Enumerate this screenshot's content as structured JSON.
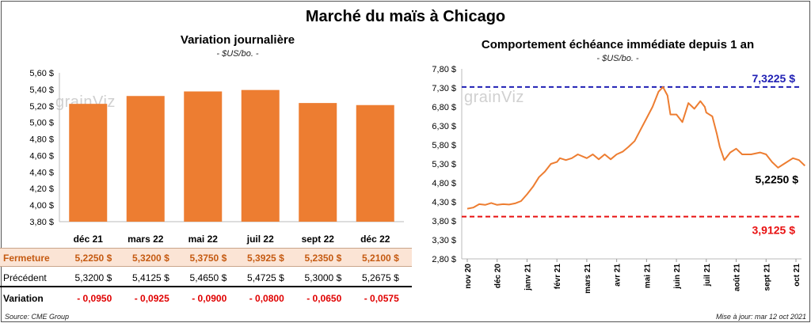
{
  "title": "Marché du maïs à Chicago",
  "left": {
    "title": "Variation journalière",
    "subtitle": "- $US/bo. -",
    "watermark": "grainViz"
  },
  "right": {
    "title": "Comportement échéance immédiate depuis 1 an",
    "subtitle": "- $US/bo. -",
    "watermark": "grainViz"
  },
  "table": {
    "rows": [
      {
        "label": "Fermeture",
        "values": [
          "5,2250 $",
          "5,3200 $",
          "5,3750 $",
          "5,3925 $",
          "5,2350 $",
          "5,2100 $"
        ]
      },
      {
        "label": "Précédent",
        "values": [
          "5,3200 $",
          "5,4125 $",
          "5,4650 $",
          "5,4725 $",
          "5,3000 $",
          "5,2675 $"
        ]
      },
      {
        "label": "Variation",
        "values": [
          "- 0,0950",
          "- 0,0925",
          "- 0,0900",
          "- 0,0800",
          "- 0,0650",
          "- 0,0575"
        ]
      }
    ]
  },
  "footer": {
    "source": "Source: CME Group",
    "updated": "Mise à jour: mar 12 oct 2021"
  },
  "colors": {
    "bar": "#ED7D31",
    "line": "#ED7D31",
    "max_line": "#1F1FB4",
    "min_line": "#E81010",
    "fermeture_bg": "#FBE4D5",
    "negative": "#E00000"
  },
  "chart_data": [
    {
      "type": "bar",
      "categories": [
        "déc 21",
        "mars 22",
        "mai 22",
        "juil 22",
        "sept 22",
        "déc 22"
      ],
      "values": [
        5.225,
        5.32,
        5.375,
        5.3925,
        5.235,
        5.21
      ],
      "ylim": [
        3.8,
        5.6
      ],
      "yticks": [
        "3,80 $",
        "4,00 $",
        "4,20 $",
        "4,40 $",
        "4,60 $",
        "4,80 $",
        "5,00 $",
        "5,20 $",
        "5,40 $",
        "5,60 $"
      ],
      "grid": false,
      "legend": "none"
    },
    {
      "type": "line",
      "x_labels": [
        "nov 20",
        "déc 20",
        "janv 21",
        "févr 21",
        "mars 21",
        "avr 21",
        "mai 21",
        "juin 21",
        "juil 21",
        "août 21",
        "sept 21",
        "oct 21"
      ],
      "ylim": [
        2.8,
        7.8
      ],
      "yticks": [
        "2,80 $",
        "3,30 $",
        "3,80 $",
        "4,30 $",
        "4,80 $",
        "5,30 $",
        "5,80 $",
        "6,30 $",
        "6,80 $",
        "7,30 $",
        "7,80 $"
      ],
      "series": [
        {
          "values": [
            [
              0.0,
              4.12
            ],
            [
              0.2,
              4.15
            ],
            [
              0.4,
              4.24
            ],
            [
              0.6,
              4.22
            ],
            [
              0.8,
              4.27
            ],
            [
              1.0,
              4.22
            ],
            [
              1.2,
              4.24
            ],
            [
              1.4,
              4.23
            ],
            [
              1.6,
              4.26
            ],
            [
              1.8,
              4.32
            ],
            [
              2.0,
              4.5
            ],
            [
              2.2,
              4.7
            ],
            [
              2.4,
              4.95
            ],
            [
              2.6,
              5.1
            ],
            [
              2.8,
              5.3
            ],
            [
              3.0,
              5.35
            ],
            [
              3.1,
              5.45
            ],
            [
              3.3,
              5.4
            ],
            [
              3.5,
              5.45
            ],
            [
              3.7,
              5.55
            ],
            [
              4.0,
              5.45
            ],
            [
              4.2,
              5.55
            ],
            [
              4.4,
              5.42
            ],
            [
              4.6,
              5.55
            ],
            [
              4.8,
              5.42
            ],
            [
              5.0,
              5.55
            ],
            [
              5.2,
              5.62
            ],
            [
              5.4,
              5.75
            ],
            [
              5.6,
              5.9
            ],
            [
              5.8,
              6.2
            ],
            [
              6.0,
              6.5
            ],
            [
              6.2,
              6.8
            ],
            [
              6.4,
              7.2
            ],
            [
              6.55,
              7.3225
            ],
            [
              6.7,
              7.1
            ],
            [
              6.8,
              6.6
            ],
            [
              7.0,
              6.6
            ],
            [
              7.2,
              6.4
            ],
            [
              7.4,
              6.9
            ],
            [
              7.6,
              6.75
            ],
            [
              7.8,
              6.95
            ],
            [
              7.95,
              6.8
            ],
            [
              8.0,
              6.65
            ],
            [
              8.2,
              6.55
            ],
            [
              8.35,
              6.1
            ],
            [
              8.45,
              5.75
            ],
            [
              8.6,
              5.4
            ],
            [
              8.8,
              5.6
            ],
            [
              9.0,
              5.7
            ],
            [
              9.2,
              5.55
            ],
            [
              9.5,
              5.55
            ],
            [
              9.8,
              5.6
            ],
            [
              10.0,
              5.55
            ],
            [
              10.2,
              5.35
            ],
            [
              10.4,
              5.2
            ],
            [
              10.6,
              5.3
            ],
            [
              10.9,
              5.45
            ],
            [
              11.1,
              5.4
            ],
            [
              11.3,
              5.25
            ]
          ]
        }
      ],
      "max_line": {
        "value": 7.3225,
        "label": "7,3225 $"
      },
      "min_line": {
        "value": 3.9125,
        "label": "3,9125 $"
      },
      "last_label": "5,2250 $",
      "grid": false,
      "legend": "none"
    }
  ]
}
